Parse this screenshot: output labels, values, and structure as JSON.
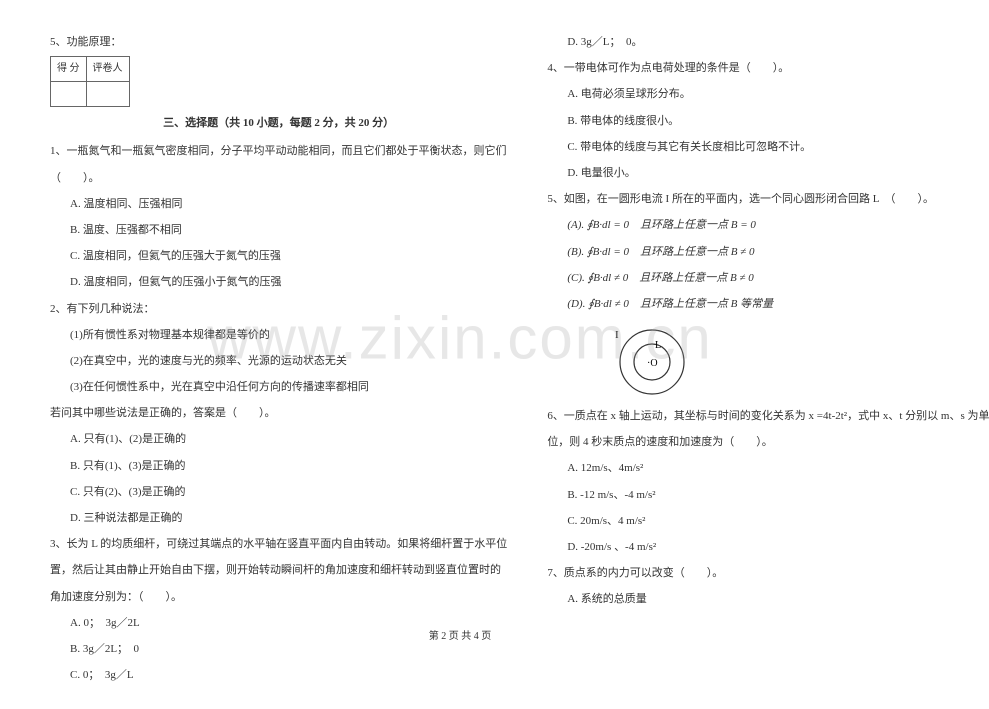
{
  "left": {
    "q5_header": "5、功能原理：",
    "score_table": {
      "c1": "得 分",
      "c2": "评卷人"
    },
    "section3_title": "三、选择题（共 10 小题，每题 2 分，共 20 分）",
    "q1": {
      "stem1": "1、一瓶氮气和一瓶氦气密度相同，分子平均平动动能相同，而且它们都处于平衡状态，则它们",
      "stem2": "（　　）。",
      "a": "A. 温度相同、压强相同",
      "b": "B. 温度、压强都不相同",
      "c": "C. 温度相同，但氦气的压强大于氮气的压强",
      "d": "D. 温度相同，但氦气的压强小于氮气的压强"
    },
    "q2": {
      "stem": "2、有下列几种说法：",
      "s1": "(1)所有惯性系对物理基本规律都是等价的",
      "s2": "(2)在真空中，光的速度与光的频率、光源的运动状态无关",
      "s3": "(3)在任何惯性系中，光在真空中沿任何方向的传播速率都相同",
      "ask": "若问其中哪些说法是正确的，答案是（　　）。",
      "a": "A.  只有(1)、(2)是正确的",
      "b": "B.  只有(1)、(3)是正确的",
      "c": "C.  只有(2)、(3)是正确的",
      "d": "D.  三种说法都是正确的"
    },
    "q3": {
      "stem1": "3、长为 L 的均质细杆，可绕过其端点的水平轴在竖直平面内自由转动。如果将细杆置于水平位",
      "stem2": "置，然后让其由静止开始自由下摆，则开始转动瞬间杆的角加速度和细杆转动到竖直位置时的",
      "stem3": "角加速度分别为：（　　）。",
      "a": "A. 0；　3g／2L",
      "b": "B. 3g／2L；　0",
      "c": "C. 0；　3g／L"
    }
  },
  "right": {
    "q3d": "D. 3g／L；　0。",
    "q4": {
      "stem": "4、一带电体可作为点电荷处理的条件是（　　）。",
      "a": "A. 电荷必须呈球形分布。",
      "b": "B. 带电体的线度很小。",
      "c": "C. 带电体的线度与其它有关长度相比可忽略不计。",
      "d": "D. 电量很小。"
    },
    "q5": {
      "stem": "5、如图，在一圆形电流 I 所在的平面内，选一个同心圆形闭合回路 L　（　　）。",
      "a": "(A). ∮B·dl = 0　且环路上任意一点 B = 0",
      "b": "(B). ∮B·dl = 0　且环路上任意一点 B ≠ 0",
      "c": "(C). ∮B·dl ≠ 0　且环路上任意一点 B ≠ 0",
      "d": "(D). ∮B·dl ≠ 0　且环路上任意一点 B 等常量"
    },
    "diagram": {
      "outer_label": "I",
      "inner_label": "L",
      "center_label": "·O",
      "outer_r": 32,
      "inner_r": 18,
      "stroke": "#333333"
    },
    "q6": {
      "stem1": "6、一质点在 x 轴上运动，其坐标与时间的变化关系为 x =4t-2t²，式中 x、t 分别以 m、s 为单",
      "stem2": "位，则 4 秒末质点的速度和加速度为（　　）。",
      "a": "A. 12m/s、4m/s²",
      "b": "B. -12 m/s、-4 m/s²",
      "c": "C. 20m/s、4 m/s²",
      "d": "D. -20m/s 、-4 m/s²"
    },
    "q7": {
      "stem": "7、质点系的内力可以改变（　　）。",
      "a": "A. 系统的总质量"
    }
  },
  "footer": "第 2 页 共 4 页",
  "watermark": "www.zixin.com.cn",
  "colors": {
    "text": "#333333",
    "border": "#666666",
    "bg": "#ffffff"
  }
}
